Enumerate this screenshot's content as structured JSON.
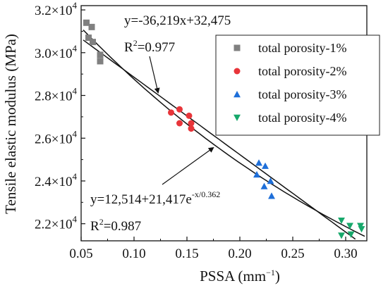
{
  "chart_data": {
    "type": "scatter",
    "xlabel": "PSSA (mm",
    "xlabel_sup": "−1",
    "xlabel_close": ")",
    "ylabel": "Tensile elastic modulus (MPa)",
    "xlim": [
      0.05,
      0.32
    ],
    "ylim": [
      21200,
      32200
    ],
    "x_ticks": [
      0.05,
      0.1,
      0.15,
      0.2,
      0.25,
      0.3
    ],
    "x_tick_labels": [
      "0.05",
      "0.10",
      "0.15",
      "0.20",
      "0.25",
      "0.30"
    ],
    "y_ticks": [
      22000,
      24000,
      26000,
      28000,
      30000,
      32000
    ],
    "y_tick_labels": [
      {
        "mant": "2.2×10",
        "exp": "4"
      },
      {
        "mant": "2.4×10",
        "exp": "4"
      },
      {
        "mant": "2.6×10",
        "exp": "4"
      },
      {
        "mant": "2.8×10",
        "exp": "4"
      },
      {
        "mant": "3.0×10",
        "exp": "4"
      },
      {
        "mant": "3.2×10",
        "exp": "4"
      }
    ],
    "legend_position": "top-right",
    "series": [
      {
        "name": "total porosity-1%",
        "marker": "square",
        "color": "#808080",
        "points": [
          [
            0.055,
            31400
          ],
          [
            0.057,
            30700
          ],
          [
            0.06,
            31200
          ],
          [
            0.061,
            30500
          ],
          [
            0.068,
            29900
          ],
          [
            0.068,
            29600
          ]
        ]
      },
      {
        "name": "total porosity-2%",
        "marker": "circle",
        "color": "#e8353a",
        "points": [
          [
            0.135,
            27200
          ],
          [
            0.143,
            27350
          ],
          [
            0.143,
            26700
          ],
          [
            0.152,
            27050
          ],
          [
            0.154,
            26700
          ],
          [
            0.154,
            26450
          ]
        ]
      },
      {
        "name": "total porosity-3%",
        "marker": "triangle-up",
        "color": "#1e6fd9",
        "points": [
          [
            0.216,
            24300
          ],
          [
            0.218,
            24850
          ],
          [
            0.224,
            24700
          ],
          [
            0.223,
            23750
          ],
          [
            0.229,
            24000
          ],
          [
            0.23,
            23300
          ]
        ]
      },
      {
        "name": "total porosity-4%",
        "marker": "triangle-down",
        "color": "#17a86b",
        "points": [
          [
            0.296,
            22150
          ],
          [
            0.304,
            21900
          ],
          [
            0.305,
            21500
          ],
          [
            0.314,
            21900
          ],
          [
            0.296,
            21450
          ],
          [
            0.315,
            21750
          ]
        ]
      }
    ],
    "fits": [
      {
        "kind": "linear",
        "slope": -36219,
        "intercept": 32475
      },
      {
        "kind": "exponential",
        "y0": 12514,
        "A": 21417,
        "t": 0.362
      }
    ],
    "annotations": {
      "linear_eq": "y=-36,219x+32,475",
      "linear_r2_label": "R",
      "linear_r2_sup": "2",
      "linear_r2_value": "=0.977",
      "exp_eq_main": "y=12,514+21,417e",
      "exp_eq_sup": "-x/0.362",
      "exp_r2_label": "R",
      "exp_r2_sup": "2",
      "exp_r2_value": "=0.987"
    }
  }
}
